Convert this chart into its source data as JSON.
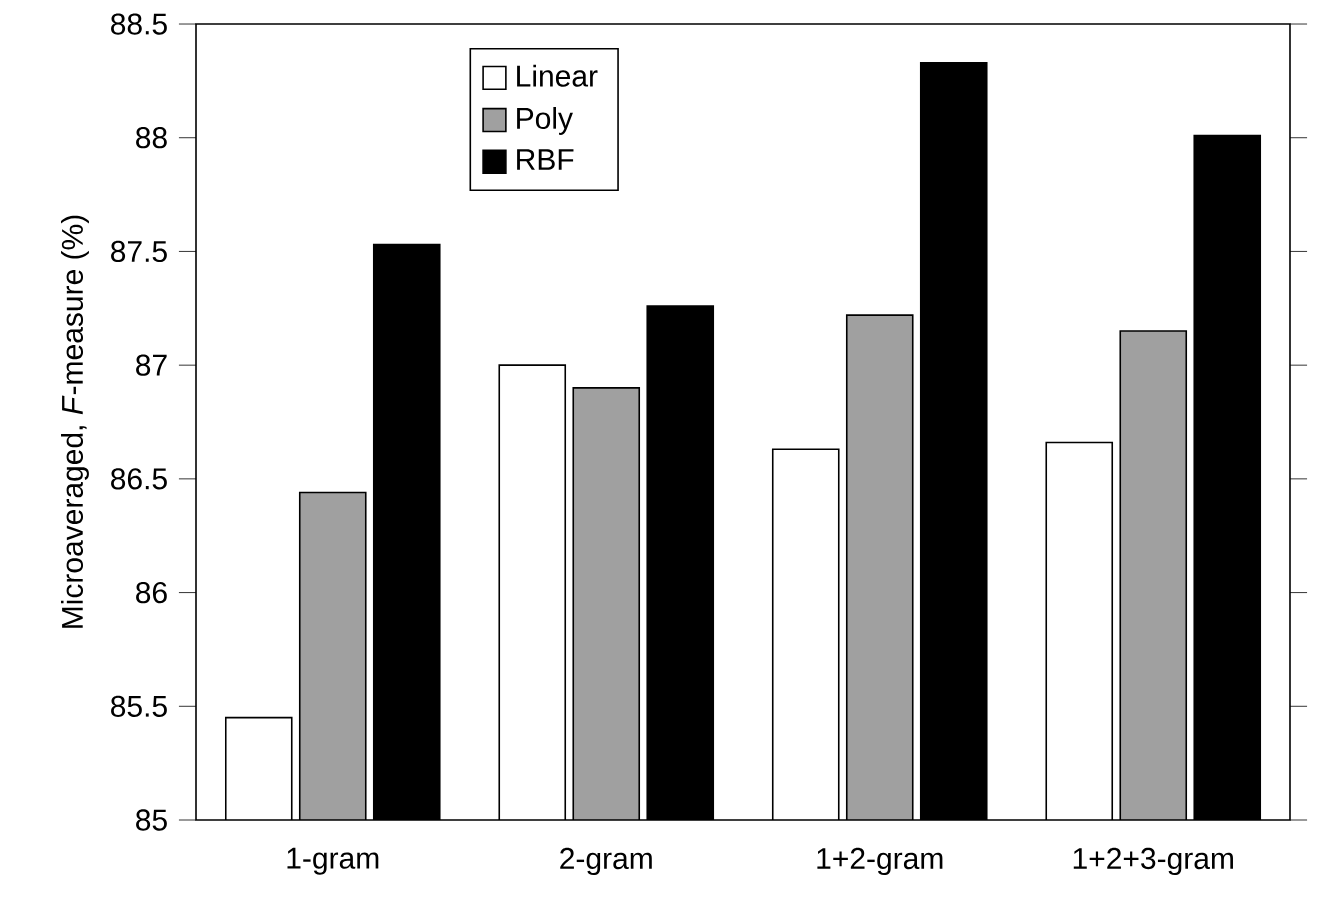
{
  "chart_data": {
    "type": "bar",
    "ylabel": "Microaveraged, *F*-measure (%)",
    "categories": [
      "1-gram",
      "2-gram",
      "1+2-gram",
      "1+2+3-gram"
    ],
    "series": [
      {
        "name": "Linear",
        "color": "#ffffff",
        "values": [
          85.45,
          87.0,
          86.63,
          86.66
        ]
      },
      {
        "name": "Poly",
        "color": "#a0a0a0",
        "values": [
          86.44,
          86.9,
          87.22,
          87.15
        ]
      },
      {
        "name": "RBF",
        "color": "#000000",
        "values": [
          87.53,
          87.26,
          88.33,
          88.01
        ]
      }
    ],
    "ylim": [
      85,
      88.5
    ],
    "yticks": [
      85,
      85.5,
      86,
      86.5,
      87,
      87.5,
      88,
      88.5
    ],
    "legend": "top left"
  }
}
